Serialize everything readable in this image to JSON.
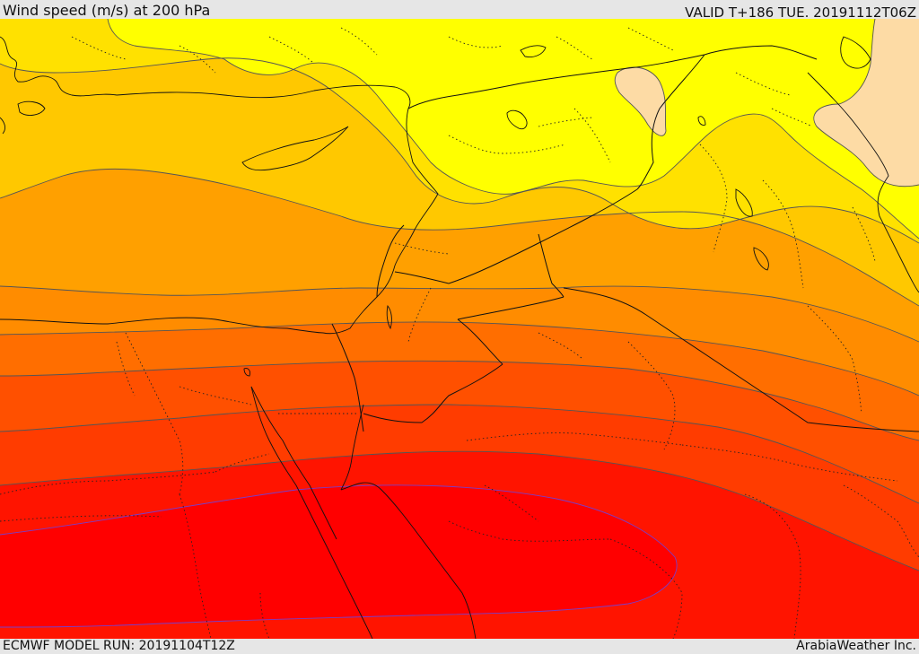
{
  "header": {
    "title": "Wind speed (m/s) at 200 hPa",
    "valid": "VALID T+186 TUE. 20191112T06Z"
  },
  "footer": {
    "model_run": "ECMWF MODEL RUN: 20191104T12Z",
    "credit": "ArabiaWeather Inc."
  },
  "colors": {
    "band_peach": "#fddba5",
    "band_yellow": "#ffff00",
    "band_gold": "#ffe100",
    "band_amber": "#ffc800",
    "band_orange1": "#ffa000",
    "band_orange2": "#ff8c00",
    "band_orange3": "#ff6e00",
    "band_redorange": "#ff5000",
    "band_orangered": "#ff3c00",
    "band_red": "#ff1400",
    "band_core": "#ff0000"
  }
}
